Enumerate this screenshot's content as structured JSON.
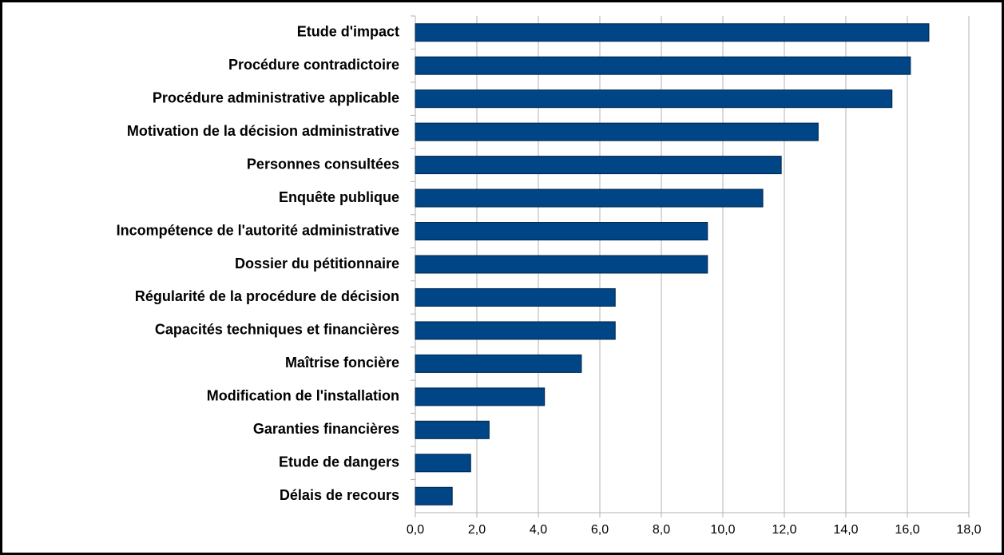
{
  "chart_data": {
    "type": "bar",
    "orientation": "horizontal",
    "categories": [
      "Etude d'impact",
      "Procédure contradictoire",
      "Procédure administrative applicable",
      "Motivation de la décision administrative",
      "Personnes consultées",
      "Enquête publique",
      "Incompétence de l'autorité administrative",
      "Dossier du pétitionnaire",
      "Régularité de la procédure de décision",
      "Capacités techniques et financières",
      "Maîtrise foncière",
      "Modification de l'installation",
      "Garanties financières",
      "Etude de dangers",
      "Délais de recours"
    ],
    "values": [
      16.7,
      16.1,
      15.5,
      13.1,
      11.9,
      11.3,
      9.5,
      9.5,
      6.5,
      6.5,
      5.4,
      4.2,
      2.4,
      1.8,
      1.2
    ],
    "color": "#004586",
    "xlim": [
      0,
      18
    ],
    "xticks": [
      {
        "value": 0,
        "label": "0,0"
      },
      {
        "value": 2,
        "label": "2,0"
      },
      {
        "value": 4,
        "label": "4,0"
      },
      {
        "value": 6,
        "label": "6,0"
      },
      {
        "value": 8,
        "label": "8,0"
      },
      {
        "value": 10,
        "label": "10,0"
      },
      {
        "value": 12,
        "label": "12,0"
      },
      {
        "value": 14,
        "label": "14,0"
      },
      {
        "value": 16,
        "label": "16,0"
      },
      {
        "value": 18,
        "label": "18,0"
      }
    ],
    "grid": true
  }
}
